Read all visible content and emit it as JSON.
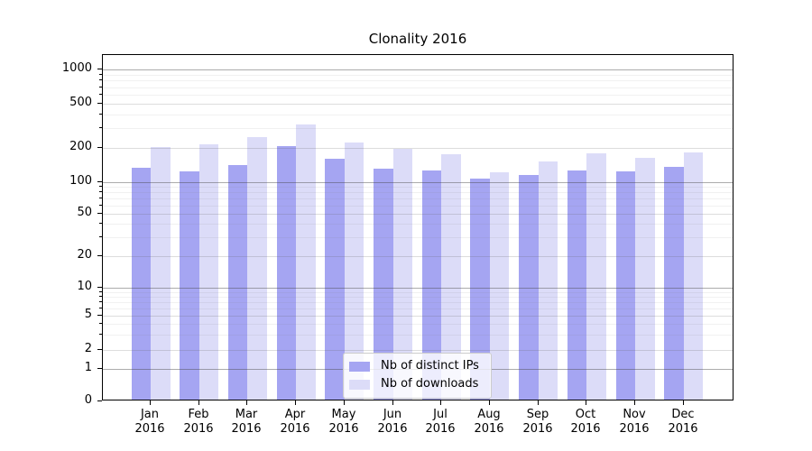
{
  "title": "Clonality 2016",
  "chart_data": {
    "type": "bar",
    "title": "Clonality 2016",
    "categories": [
      "Jan 2016",
      "Feb 2016",
      "Mar 2016",
      "Apr 2016",
      "May 2016",
      "Jun 2016",
      "Jul 2016",
      "Aug 2016",
      "Sep 2016",
      "Oct 2016",
      "Nov 2016",
      "Dec 2016"
    ],
    "series": [
      {
        "name": "Nb of distinct IPs",
        "color": "#a5a5f2",
        "values": [
          130,
          120,
          136,
          199,
          154,
          127,
          122,
          104,
          112,
          122,
          121,
          132
        ]
      },
      {
        "name": "Nb of downloads",
        "color": "#dcdcf8",
        "values": [
          198,
          208,
          242,
          313,
          215,
          190,
          171,
          118,
          147,
          172,
          158,
          177
        ]
      }
    ],
    "yscale": "symlog",
    "yticks": [
      0,
      1,
      2,
      5,
      10,
      20,
      50,
      100,
      200,
      500,
      1000
    ],
    "ylim": [
      0,
      1400
    ],
    "grid": true,
    "legend_position": "lower-center"
  }
}
